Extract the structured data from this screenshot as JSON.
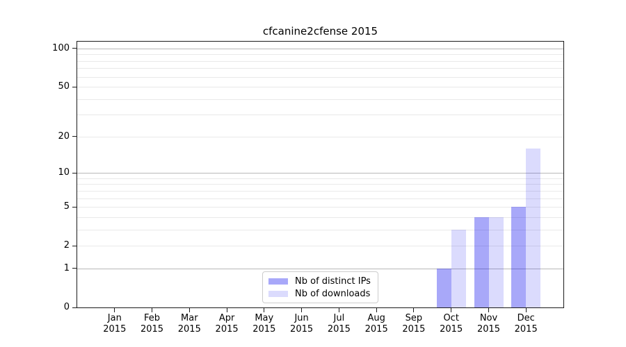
{
  "chart_data": {
    "type": "bar",
    "title": "cfcanine2cfense 2015",
    "xlabel": "",
    "ylabel": "",
    "scale": "log1p",
    "x_year": "2015",
    "categories": [
      "Jan",
      "Feb",
      "Mar",
      "Apr",
      "May",
      "Jun",
      "Jul",
      "Aug",
      "Sep",
      "Oct",
      "Nov",
      "Dec"
    ],
    "series": [
      {
        "name": "Nb of distinct IPs",
        "color": "rgba(0,0,238,0.34)",
        "values": [
          0,
          0,
          0,
          0,
          0,
          0,
          0,
          0,
          0,
          1,
          4,
          5
        ]
      },
      {
        "name": "Nb of downloads",
        "color": "rgba(0,0,238,0.14)",
        "values": [
          0,
          0,
          0,
          0,
          0,
          0,
          0,
          0,
          0,
          3,
          4,
          16
        ]
      }
    ],
    "y_ticks": [
      100,
      50,
      20,
      10,
      5,
      2,
      1,
      0
    ],
    "ylim": [
      0,
      112
    ],
    "grid": {
      "major_values": [
        1,
        10,
        100
      ],
      "minor_values": [
        2,
        3,
        4,
        5,
        6,
        7,
        8,
        9,
        20,
        30,
        40,
        50,
        60,
        70,
        80,
        90
      ]
    },
    "legend": {
      "position": "lower center"
    },
    "colors": {
      "bar_dark": "rgba(0,0,238,0.34)",
      "bar_light": "rgba(0,0,238,0.14)",
      "grid_major": "#b8b8b8",
      "grid_minor": "#e9e9e9"
    }
  }
}
